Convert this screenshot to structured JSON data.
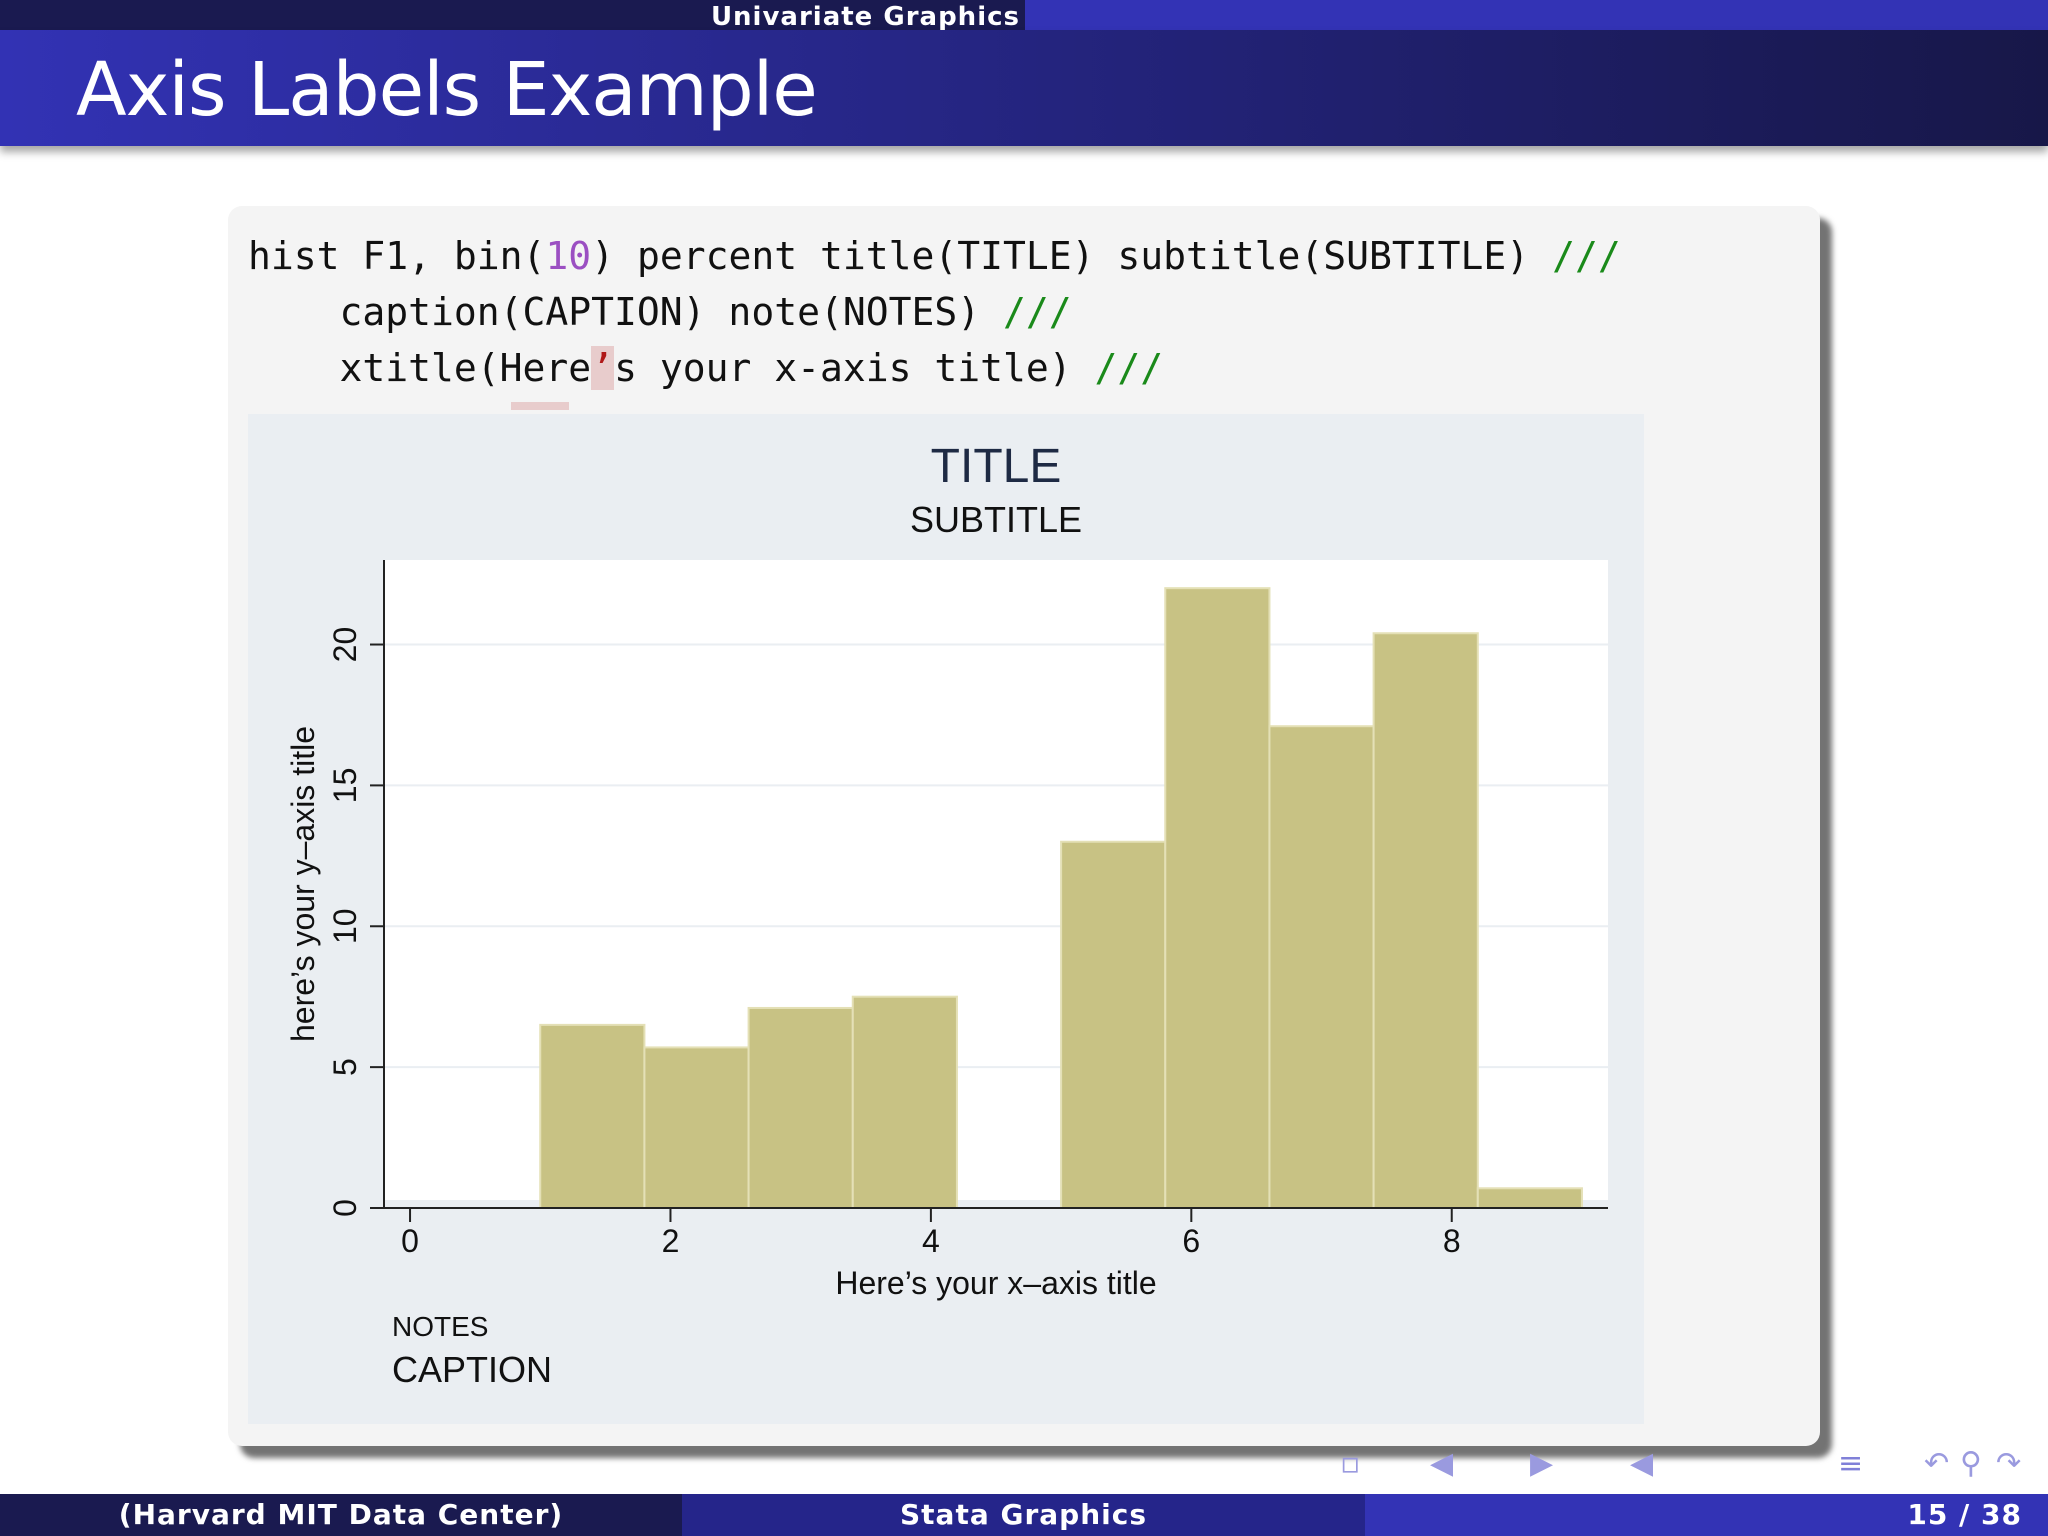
{
  "header": {
    "section": "Univariate Graphics",
    "frame_title": "Axis Labels Example"
  },
  "code": {
    "line1_a": "hist F1, bin(",
    "line1_num": "10",
    "line1_b": ") percent title(TITLE) subtitle(SUBTITLE) ",
    "line1_cmt": "///",
    "line2_a": "    caption(CAPTION) note(NOTES) ",
    "line2_cmt": "///",
    "line3_a": "    xtitle(Here",
    "line3_err": "’",
    "line3_b": "s your x-axis title) ",
    "line3_cmt": "///"
  },
  "chart_data": {
    "type": "bar",
    "title": "TITLE",
    "subtitle": "SUBTITLE",
    "xlabel": "Here’s your x–axis title",
    "ylabel": "here’s your y–axis title",
    "note": "NOTES",
    "caption": "CAPTION",
    "xlim": [
      -0.2,
      9.2
    ],
    "ylim": [
      0,
      23
    ],
    "xticks": [
      "0",
      "2",
      "4",
      "6",
      "8"
    ],
    "yticks": [
      "0",
      "5",
      "10",
      "15",
      "20"
    ],
    "grid": true,
    "bar_color": "#c8c284",
    "bins": [
      {
        "x0": 1.0,
        "x1": 1.8,
        "value": 6.5
      },
      {
        "x0": 1.8,
        "x1": 2.6,
        "value": 5.7
      },
      {
        "x0": 2.6,
        "x1": 3.4,
        "value": 7.1
      },
      {
        "x0": 3.4,
        "x1": 4.2,
        "value": 7.5
      },
      {
        "x0": 5.0,
        "x1": 5.8,
        "value": 13.0
      },
      {
        "x0": 5.8,
        "x1": 6.6,
        "value": 22.0
      },
      {
        "x0": 6.6,
        "x1": 7.4,
        "value": 17.1
      },
      {
        "x0": 7.4,
        "x1": 8.2,
        "value": 20.4
      },
      {
        "x0": 8.2,
        "x1": 9.0,
        "value": 0.7
      }
    ]
  },
  "footer": {
    "author": "(Harvard MIT Data Center)",
    "title": "Stata Graphics",
    "page": "15 / 38"
  }
}
